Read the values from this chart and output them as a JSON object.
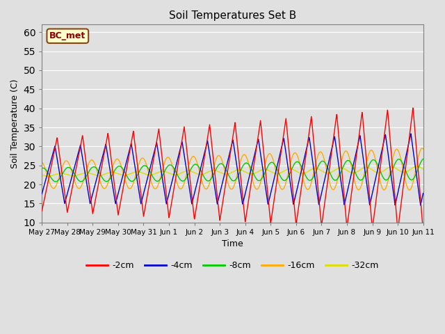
{
  "title": "Soil Temperatures Set B",
  "xlabel": "Time",
  "ylabel": "Soil Temperature (C)",
  "ylim": [
    10,
    62
  ],
  "yticks": [
    10,
    15,
    20,
    25,
    30,
    35,
    40,
    45,
    50,
    55,
    60
  ],
  "annotation_text": "BC_met",
  "annotation_color": "#8B0000",
  "annotation_bg": "#ffffcc",
  "annotation_edge": "#8B4513",
  "series_colors": [
    "#ff0000",
    "#0000cc",
    "#00cc00",
    "#ffaa00",
    "#dddd00"
  ],
  "series_labels": [
    "-2cm",
    "-4cm",
    "-8cm",
    "-16cm",
    "-32cm"
  ],
  "bg_color": "#e0e0e0",
  "grid_color": "#ffffff",
  "tick_labels": [
    "May 27",
    "May 28",
    "May 29",
    "May 30",
    "May 31",
    "Jun 1",
    "Jun 2",
    "Jun 3",
    "Jun 4",
    "Jun 5",
    "Jun 6",
    "Jun 7",
    "Jun 8",
    "Jun 9",
    "Jun 10",
    "Jun 11"
  ],
  "n_days": 15,
  "n_per_day": 144
}
